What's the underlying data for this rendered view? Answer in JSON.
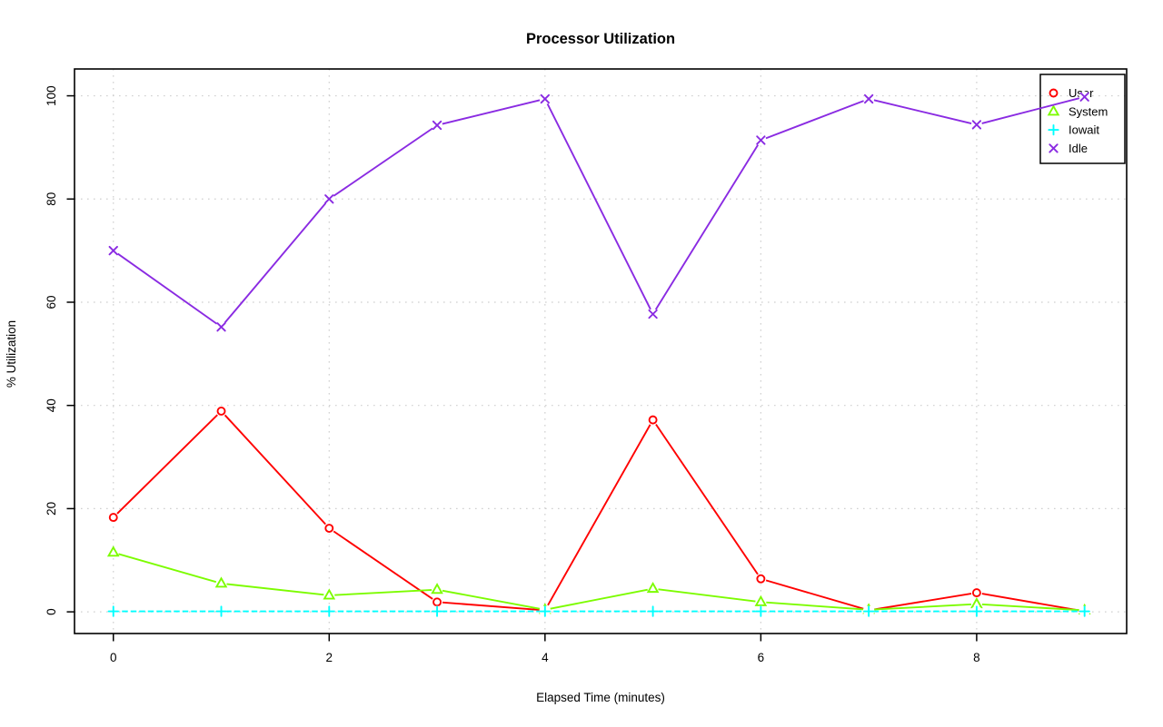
{
  "chart_data": {
    "type": "line",
    "title": "Processor Utilization",
    "xlabel": "Elapsed Time (minutes)",
    "ylabel": "% Utilization",
    "x": [
      0,
      1,
      2,
      3,
      4,
      5,
      6,
      7,
      8,
      9
    ],
    "x_ticks": [
      0,
      2,
      4,
      6,
      8
    ],
    "y_ticks": [
      0,
      20,
      40,
      60,
      80,
      100
    ],
    "xlim": [
      -0.36,
      9.39
    ],
    "ylim": [
      -4.2,
      105.2
    ],
    "grid": true,
    "grid_style": "dotted",
    "legend_position": "top-right",
    "series": [
      {
        "name": "User",
        "color": "#ff0000",
        "marker": "circle",
        "line": "solid",
        "values": [
          18.3,
          38.9,
          16.2,
          1.9,
          0.3,
          37.2,
          6.4,
          0.3,
          3.7,
          0.1
        ]
      },
      {
        "name": "System",
        "color": "#7cfc00",
        "marker": "triangle",
        "line": "solid",
        "values": [
          11.5,
          5.5,
          3.2,
          4.3,
          0.4,
          4.5,
          1.9,
          0.4,
          1.5,
          0.3
        ]
      },
      {
        "name": "Iowait",
        "color": "#00ffff",
        "marker": "plus",
        "line": "dashed",
        "values": [
          0.1,
          0.1,
          0.1,
          0.1,
          0.1,
          0.1,
          0.1,
          0.1,
          0.1,
          0.1
        ]
      },
      {
        "name": "Idle",
        "color": "#8a2be2",
        "marker": "x",
        "line": "solid",
        "values": [
          70,
          55.2,
          80,
          94.3,
          99.4,
          57.7,
          91.4,
          99.4,
          94.4,
          99.8
        ]
      }
    ]
  },
  "colors": {
    "background": "#ffffff",
    "grid": "#cfcfcf",
    "axis": "#000000",
    "legend_border": "#000000"
  }
}
